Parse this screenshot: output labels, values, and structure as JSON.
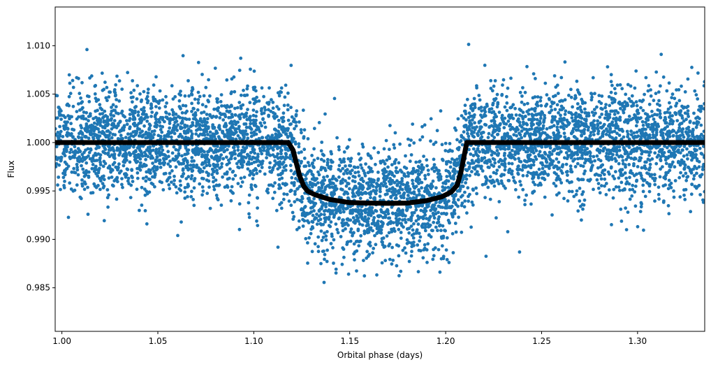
{
  "chart_data": {
    "type": "scatter",
    "title": "",
    "xlabel": "Orbital phase (days)",
    "ylabel": "Flux",
    "xlim": [
      0.9965,
      1.335
    ],
    "ylim": [
      0.9805,
      1.014
    ],
    "xticks": [
      1.0,
      1.05,
      1.1,
      1.15,
      1.2,
      1.25,
      1.3
    ],
    "xtick_labels": [
      "1.00",
      "1.05",
      "1.10",
      "1.15",
      "1.20",
      "1.25",
      "1.30"
    ],
    "yticks": [
      0.985,
      0.99,
      0.995,
      1.0,
      1.005,
      1.01
    ],
    "ytick_labels": [
      "0.985",
      "0.990",
      "0.995",
      "1.000",
      "1.005",
      "1.010"
    ],
    "grid": false,
    "colors": {
      "points": "#1f77b4",
      "model": "#000000"
    },
    "series": [
      {
        "kind": "scatter",
        "color": "#1f77b4",
        "baseline_flux": 1.0,
        "scatter_sigma": 0.0028,
        "approx_point_count": 5500,
        "x_range": [
          0.9965,
          1.335
        ]
      },
      {
        "kind": "line",
        "color": "#000000",
        "x": [
          0.9965,
          1.118,
          1.1205,
          1.122,
          1.124,
          1.126,
          1.128,
          1.132,
          1.14,
          1.15,
          1.16,
          1.17,
          1.18,
          1.19,
          1.198,
          1.203,
          1.206,
          1.208,
          1.2095,
          1.211,
          1.335
        ],
        "y": [
          1.0,
          1.0,
          0.9992,
          0.998,
          0.9965,
          0.9955,
          0.995,
          0.9946,
          0.9941,
          0.9938,
          0.99375,
          0.99372,
          0.99375,
          0.994,
          0.9944,
          0.9949,
          0.9956,
          0.997,
          0.9985,
          1.0,
          1.0
        ]
      }
    ]
  }
}
